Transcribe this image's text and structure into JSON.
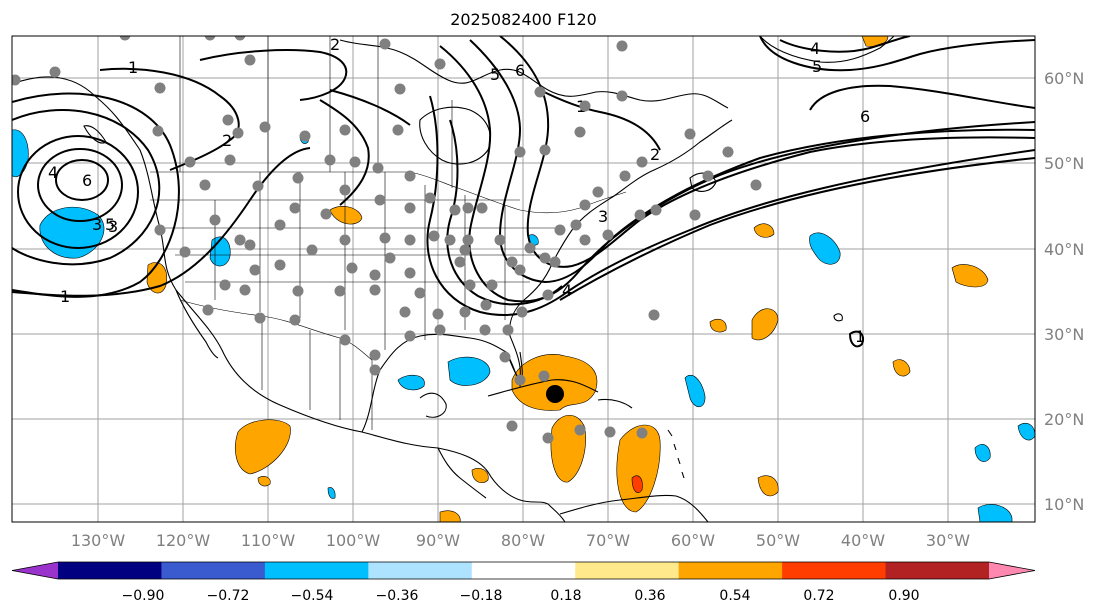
{
  "title": "2025082400 F120",
  "lon_labels": [
    "130°W",
    "120°W",
    "110°W",
    "100°W",
    "90°W",
    "80°W",
    "70°W",
    "60°W",
    "50°W",
    "40°W",
    "30°W"
  ],
  "lat_labels": [
    "60°N",
    "50°N",
    "40°N",
    "30°N",
    "20°N",
    "10°N"
  ],
  "colorbar": {
    "colors": [
      "#9933cc",
      "#000080",
      "#3a5bd0",
      "#00bfff",
      "#aee3ff",
      "#ffffff",
      "#ffe98a",
      "#ffa500",
      "#ff3d00",
      "#b22222",
      "#ff88b0"
    ],
    "tick_labels": [
      "−0.90",
      "−0.72",
      "−0.54",
      "−0.36",
      "−0.18",
      "0.18",
      "0.36",
      "0.54",
      "0.72",
      "0.90"
    ]
  },
  "contour_labels": [
    "1",
    "2",
    "3",
    "4",
    "5",
    "6",
    "1",
    "2",
    "3",
    "4",
    "5",
    "6",
    "1",
    "2",
    "3",
    "1",
    "4",
    "5",
    "6",
    "1",
    "3",
    "5",
    "4",
    "6"
  ],
  "legend_colors": {
    "positive_light": "#ffe98a",
    "positive": "#ffa500",
    "positive_strong": "#ff3d00",
    "negative": "#00bfff",
    "negative_light": "#aee3ff",
    "marker": "#808080",
    "center": "#000000"
  }
}
